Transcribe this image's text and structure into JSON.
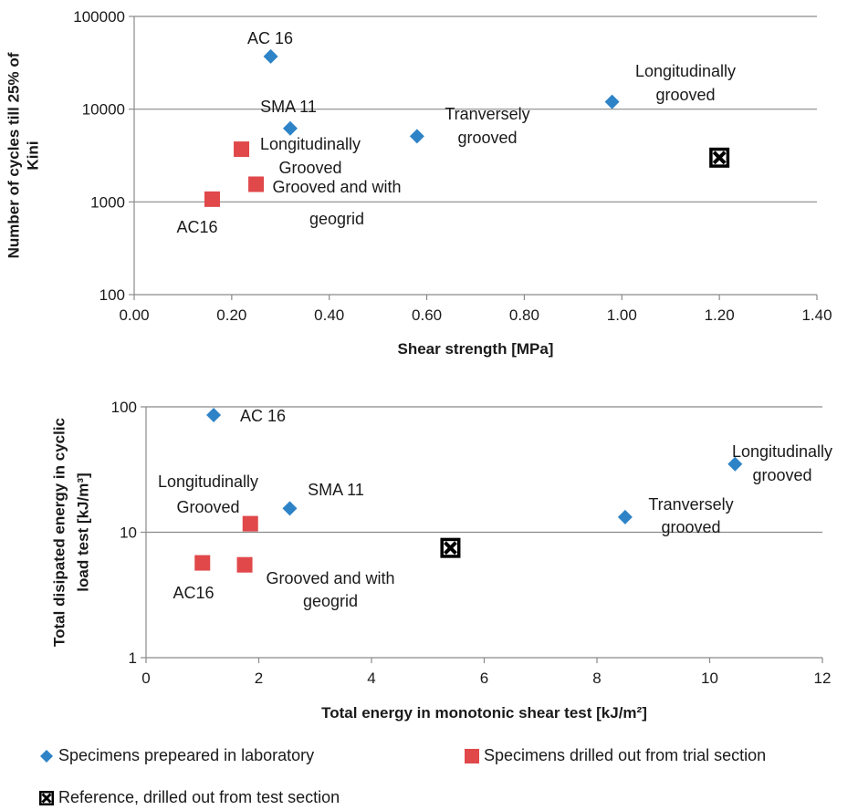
{
  "colors": {
    "laboratory": "#2e83c7",
    "trial_section": "#e0484a",
    "reference": "#000000",
    "grid": "#8a8a8a"
  },
  "chart_data": [
    {
      "type": "scatter",
      "xlabel": "Shear strength [MPa]",
      "ylabel_lines": [
        "Number of cycles till 25% of",
        "Kini"
      ],
      "xlim": [
        0,
        1.4
      ],
      "ylim": [
        100,
        100000
      ],
      "y_scale": "log",
      "x_ticks": [
        "0.00",
        "0.20",
        "0.40",
        "0.60",
        "0.80",
        "1.00",
        "1.20",
        "1.40"
      ],
      "y_ticks": [
        "100",
        "1000",
        "10000",
        "100000"
      ],
      "grid": "horizontal",
      "series": [
        {
          "key": "laboratory",
          "marker": "diamond",
          "points": [
            {
              "x": 0.28,
              "y": 37000,
              "label": "AC 16"
            },
            {
              "x": 0.32,
              "y": 6200,
              "label": "SMA 11"
            },
            {
              "x": 0.58,
              "y": 5100,
              "label": [
                "Tranversely",
                "grooved"
              ]
            },
            {
              "x": 0.98,
              "y": 12000,
              "label": [
                "Longitudinally",
                "grooved"
              ]
            }
          ]
        },
        {
          "key": "trial_section",
          "marker": "square",
          "points": [
            {
              "x": 0.22,
              "y": 3700,
              "label": [
                "Longitudinally",
                "Grooved"
              ]
            },
            {
              "x": 0.25,
              "y": 1550,
              "label": [
                "Grooved and with",
                "geogrid"
              ]
            },
            {
              "x": 0.16,
              "y": 1070,
              "label": "AC16"
            }
          ]
        },
        {
          "key": "reference",
          "marker": "boxed-x",
          "points": [
            {
              "x": 1.2,
              "y": 3000
            }
          ]
        }
      ]
    },
    {
      "type": "scatter",
      "xlabel": "Total energy in monotonic shear test [kJ/m²]",
      "ylabel_lines": [
        "Total disipated energy in cyclic",
        "load test [kJ/m³]"
      ],
      "xlim": [
        0,
        12
      ],
      "ylim": [
        1,
        100
      ],
      "y_scale": "log",
      "x_ticks": [
        "0",
        "2",
        "4",
        "6",
        "8",
        "10",
        "12"
      ],
      "y_ticks": [
        "1",
        "10",
        "100"
      ],
      "grid": "horizontal",
      "series": [
        {
          "key": "laboratory",
          "marker": "diamond",
          "points": [
            {
              "x": 1.2,
              "y": 86,
              "label": "AC 16"
            },
            {
              "x": 2.55,
              "y": 15.5,
              "label": "SMA 11"
            },
            {
              "x": 8.5,
              "y": 13.2,
              "label": [
                "Tranversely",
                "grooved"
              ]
            },
            {
              "x": 10.45,
              "y": 35,
              "label": [
                "Longitudinally",
                "grooved"
              ]
            }
          ]
        },
        {
          "key": "trial_section",
          "marker": "square",
          "points": [
            {
              "x": 1.85,
              "y": 11.7,
              "label": [
                "Longitudinally",
                "Grooved"
              ]
            },
            {
              "x": 1.75,
              "y": 5.5,
              "label": [
                "Grooved and with",
                "geogrid"
              ]
            },
            {
              "x": 1.0,
              "y": 5.7,
              "label": "AC16"
            }
          ]
        },
        {
          "key": "reference",
          "marker": "boxed-x",
          "points": [
            {
              "x": 5.4,
              "y": 7.5
            }
          ]
        }
      ]
    }
  ],
  "legend": {
    "laboratory": "Specimens prepeared in laboratory",
    "trial_section": "Specimens drilled out from trial section",
    "reference": "Reference, drilled out from test section"
  }
}
